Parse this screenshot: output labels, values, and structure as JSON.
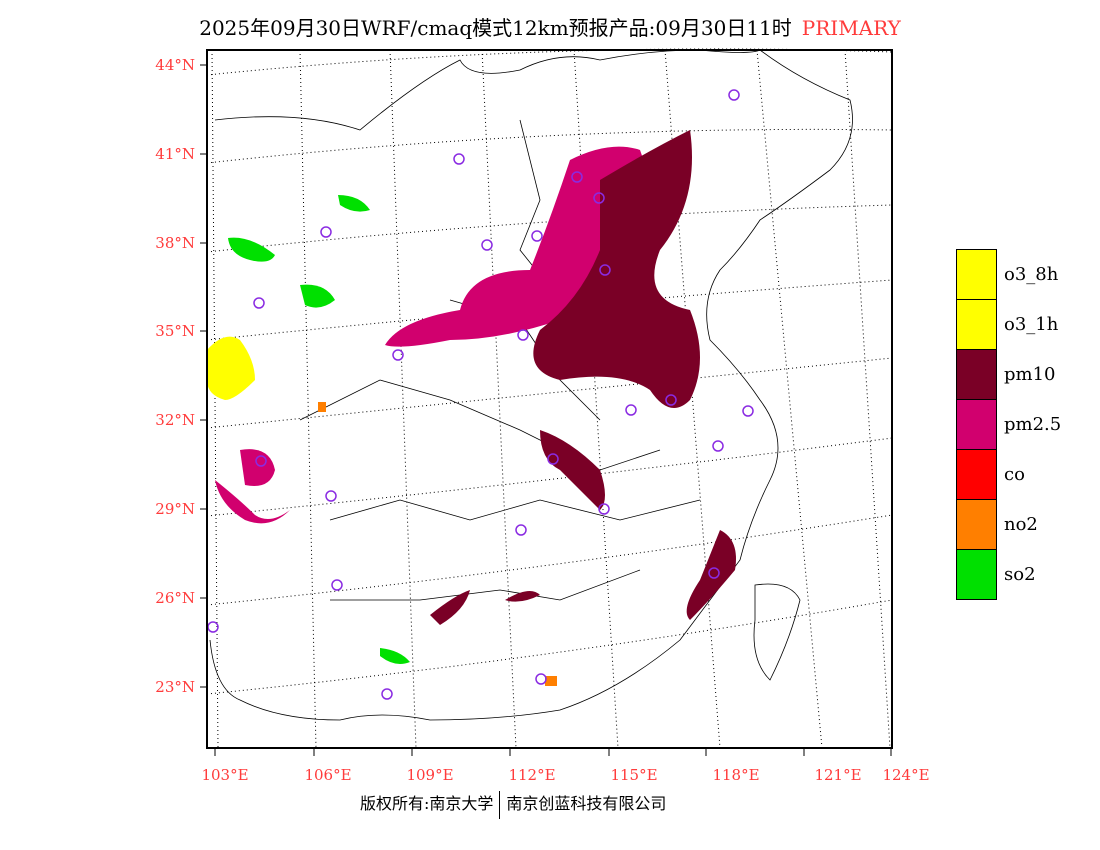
{
  "title": {
    "text": "2025年09月30日WRF/cmaq模式12km预报产品:09月30日11时",
    "mode": "PRIMARY"
  },
  "lat_labels": [
    "44°N",
    "41°N",
    "38°N",
    "35°N",
    "32°N",
    "29°N",
    "26°N",
    "23°N"
  ],
  "lon_labels": [
    "103°E",
    "106°E",
    "109°E",
    "112°E",
    "115°E",
    "118°E",
    "121°E",
    "124°E"
  ],
  "legend": [
    {
      "label": "o3_8h",
      "color": "#ffff00"
    },
    {
      "label": "o3_1h",
      "color": "#ffff00"
    },
    {
      "label": "pm10",
      "color": "#7a0026"
    },
    {
      "label": "pm2.5",
      "color": "#d1006e"
    },
    {
      "label": "co",
      "color": "#ff0000"
    },
    {
      "label": "no2",
      "color": "#ff7f00"
    },
    {
      "label": "so2",
      "color": "#00e000"
    }
  ],
  "footer": {
    "left": "版权所有:南京大学",
    "right": "南京创蓝科技有限公司"
  }
}
